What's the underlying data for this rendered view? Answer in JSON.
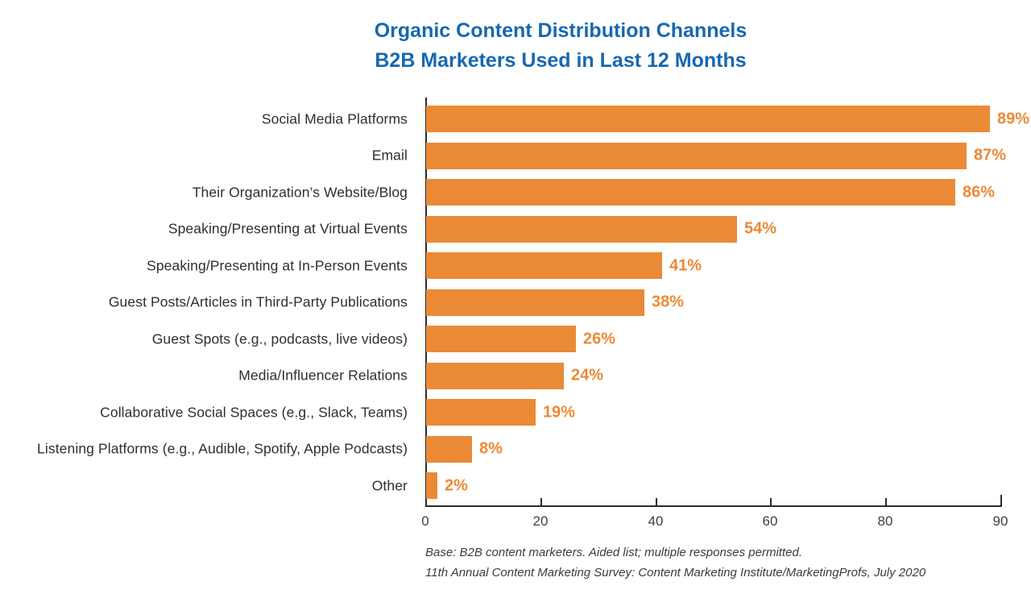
{
  "title": {
    "line1": "Organic Content Distribution Channels",
    "line2": "B2B Marketers Used in Last 12 Months"
  },
  "footer": {
    "line1": "Base: B2B content marketers. Aided list; multiple responses permitted.",
    "line2": "11th Annual Content Marketing Survey: Content Marketing Institute/MarketingProfs, July 2020"
  },
  "colors": {
    "bar": "#EB8A36",
    "title": "#1768B1",
    "axis": "#2B2B2B",
    "label_text": "#2F2F2F",
    "footer_text": "#3C3C3C"
  },
  "chart_data": {
    "type": "bar",
    "orientation": "horizontal",
    "title": "Organic Content Distribution Channels B2B Marketers Used in Last 12 Months",
    "categories": [
      "Social Media Platforms",
      "Email",
      "Their Organization’s Website/Blog",
      "Speaking/Presenting at Virtual Events",
      "Speaking/Presenting at In-Person Events",
      "Guest Posts/Articles in Third-Party Publications",
      "Guest Spots (e.g., podcasts, live videos)",
      "Media/Influencer Relations",
      "Collaborative Social Spaces (e.g., Slack, Teams)",
      "Listening Platforms (e.g., Audible, Spotify, Apple Podcasts)",
      "Other"
    ],
    "values": [
      89,
      87,
      86,
      54,
      41,
      38,
      26,
      24,
      19,
      8,
      2
    ],
    "value_suffix": "%",
    "xlabel": "",
    "ylabel": "",
    "x_ticks": [
      0,
      20,
      40,
      60,
      80,
      90
    ],
    "xlim": [
      0,
      90
    ],
    "grid": false,
    "legend": false
  }
}
